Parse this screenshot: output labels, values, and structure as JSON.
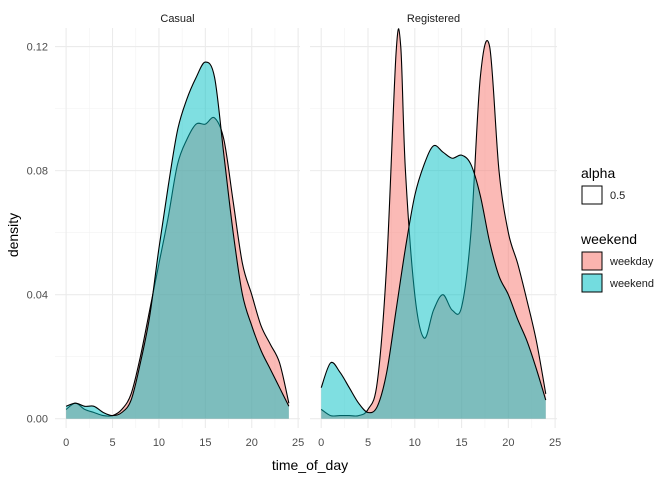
{
  "chart_data": {
    "type": "area",
    "subtype": "density",
    "xlabel": "time_of_day",
    "ylabel": "density",
    "xlim": [
      -1.2,
      25.2
    ],
    "ylim": [
      -0.003,
      0.126
    ],
    "x_ticks": [
      0,
      5,
      10,
      15,
      20,
      25
    ],
    "y_ticks": [
      0,
      0.04,
      0.08,
      0.12
    ],
    "y_tick_labels": [
      "0.00",
      "0.04",
      "0.08",
      "0.12"
    ],
    "grid": true,
    "legend_position": "right",
    "facets": [
      {
        "name": "Casual",
        "series": [
          {
            "name": "weekday",
            "color": "#F8766D",
            "points": [
              [
                0,
                0.003
              ],
              [
                1,
                0.005
              ],
              [
                2,
                0.003
              ],
              [
                3,
                0.002
              ],
              [
                4,
                0.001
              ],
              [
                5,
                0.001
              ],
              [
                6,
                0.003
              ],
              [
                7,
                0.008
              ],
              [
                8,
                0.02
              ],
              [
                9,
                0.035
              ],
              [
                10,
                0.05
              ],
              [
                11,
                0.065
              ],
              [
                12,
                0.082
              ],
              [
                13,
                0.09
              ],
              [
                14,
                0.095
              ],
              [
                15,
                0.095
              ],
              [
                16,
                0.097
              ],
              [
                17,
                0.09
              ],
              [
                18,
                0.07
              ],
              [
                19,
                0.05
              ],
              [
                20,
                0.04
              ],
              [
                21,
                0.03
              ],
              [
                22,
                0.024
              ],
              [
                23,
                0.018
              ],
              [
                24,
                0.005
              ]
            ]
          },
          {
            "name": "weekend",
            "color": "#00BFC4",
            "points": [
              [
                0,
                0.004
              ],
              [
                1,
                0.005
              ],
              [
                2,
                0.004
              ],
              [
                3,
                0.004
              ],
              [
                4,
                0.002
              ],
              [
                5,
                0.001
              ],
              [
                6,
                0.002
              ],
              [
                7,
                0.006
              ],
              [
                8,
                0.018
              ],
              [
                9,
                0.033
              ],
              [
                10,
                0.055
              ],
              [
                11,
                0.075
              ],
              [
                12,
                0.093
              ],
              [
                13,
                0.103
              ],
              [
                14,
                0.11
              ],
              [
                15,
                0.115
              ],
              [
                16,
                0.11
              ],
              [
                17,
                0.085
              ],
              [
                18,
                0.06
              ],
              [
                19,
                0.04
              ],
              [
                20,
                0.03
              ],
              [
                21,
                0.022
              ],
              [
                22,
                0.016
              ],
              [
                23,
                0.01
              ],
              [
                24,
                0.004
              ]
            ]
          }
        ]
      },
      {
        "name": "Registered",
        "series": [
          {
            "name": "weekday",
            "color": "#F8766D",
            "points": [
              [
                0,
                0.003
              ],
              [
                1,
                0.001
              ],
              [
                2,
                0.001
              ],
              [
                3,
                0.001
              ],
              [
                4,
                0.001
              ],
              [
                5,
                0.003
              ],
              [
                6,
                0.012
              ],
              [
                7,
                0.05
              ],
              [
                8,
                0.118
              ],
              [
                8.5,
                0.12
              ],
              [
                9,
                0.08
              ],
              [
                10,
                0.04
              ],
              [
                11,
                0.026
              ],
              [
                12,
                0.035
              ],
              [
                13,
                0.04
              ],
              [
                14,
                0.035
              ],
              [
                15,
                0.036
              ],
              [
                16,
                0.06
              ],
              [
                17,
                0.11
              ],
              [
                18,
                0.12
              ],
              [
                19,
                0.08
              ],
              [
                20,
                0.06
              ],
              [
                21,
                0.05
              ],
              [
                22,
                0.038
              ],
              [
                23,
                0.025
              ],
              [
                24,
                0.008
              ]
            ]
          },
          {
            "name": "weekend",
            "color": "#00BFC4",
            "points": [
              [
                0,
                0.01
              ],
              [
                1,
                0.018
              ],
              [
                2,
                0.015
              ],
              [
                3,
                0.01
              ],
              [
                4,
                0.005
              ],
              [
                5,
                0.002
              ],
              [
                6,
                0.004
              ],
              [
                7,
                0.015
              ],
              [
                8,
                0.035
              ],
              [
                9,
                0.055
              ],
              [
                10,
                0.072
              ],
              [
                11,
                0.082
              ],
              [
                12,
                0.088
              ],
              [
                13,
                0.086
              ],
              [
                14,
                0.084
              ],
              [
                15,
                0.085
              ],
              [
                16,
                0.082
              ],
              [
                17,
                0.072
              ],
              [
                18,
                0.057
              ],
              [
                19,
                0.046
              ],
              [
                20,
                0.04
              ],
              [
                21,
                0.032
              ],
              [
                22,
                0.025
              ],
              [
                23,
                0.016
              ],
              [
                24,
                0.006
              ]
            ]
          }
        ]
      }
    ],
    "legends": [
      {
        "title": "alpha",
        "items": [
          {
            "label": "0.5",
            "fill": "none"
          }
        ]
      },
      {
        "title": "weekend",
        "items": [
          {
            "label": "weekday",
            "fill": "#F8766D"
          },
          {
            "label": "weekend",
            "fill": "#00BFC4"
          }
        ]
      }
    ]
  }
}
